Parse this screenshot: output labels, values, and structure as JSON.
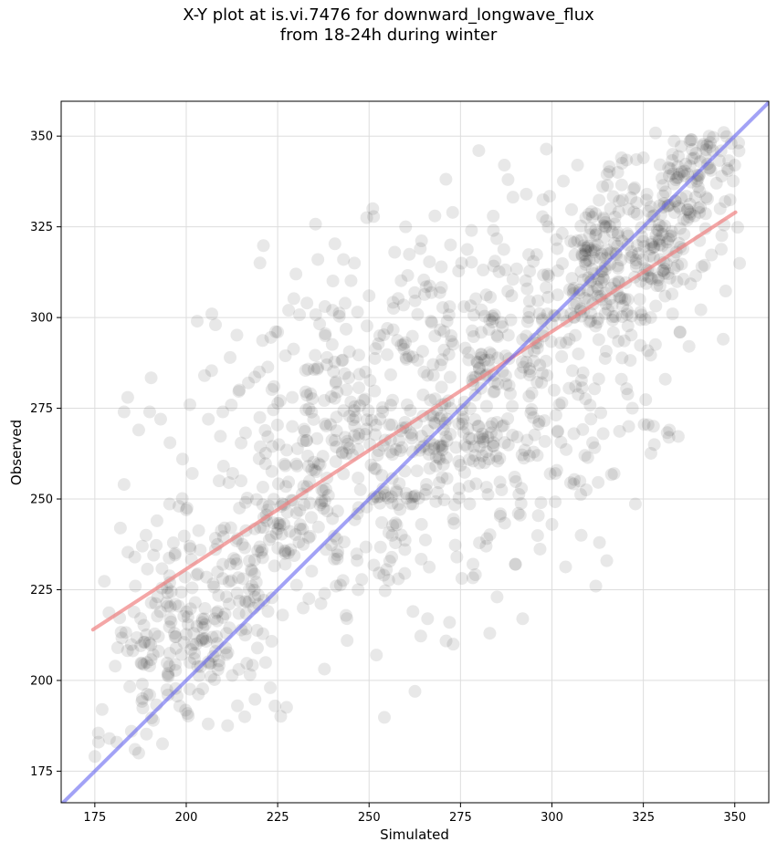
{
  "chart_data": {
    "type": "scatter",
    "title_line1": "X-Y plot at is.vi.7476 for downward_longwave_flux",
    "title_line2": "from 18-24h during winter",
    "xlabel": "Simulated",
    "ylabel": "Observed",
    "xlim": [
      165.8,
      359.3
    ],
    "ylim": [
      166.3,
      359.6
    ],
    "xticks": [
      175,
      200,
      225,
      250,
      275,
      300,
      325,
      350
    ],
    "yticks": [
      175,
      200,
      225,
      250,
      275,
      300,
      325,
      350
    ],
    "grid": true,
    "point_color": "#000000",
    "point_opacity": 0.09,
    "fit_line": {
      "color": "#f08080",
      "x": [
        174.5,
        350.2
      ],
      "y": [
        214.0,
        329.0
      ]
    },
    "identity_line": {
      "color": "#6464f0",
      "x": [
        165.8,
        359.3
      ],
      "y": [
        165.8,
        359.3
      ]
    },
    "clusters": [
      {
        "cx": 320,
        "cy": 318,
        "sx": 14,
        "sy": 14,
        "n": 320,
        "corr": 0.5
      },
      {
        "cx": 285,
        "cy": 280,
        "sx": 22,
        "sy": 24,
        "n": 360,
        "corr": 0.2
      },
      {
        "cx": 248,
        "cy": 262,
        "sx": 22,
        "sy": 26,
        "n": 330,
        "corr": 0.3
      },
      {
        "cx": 225,
        "cy": 250,
        "sx": 12,
        "sy": 24,
        "n": 120,
        "corr": 0.3
      },
      {
        "cx": 207,
        "cy": 216,
        "sx": 8,
        "sy": 14,
        "n": 120,
        "corr": 0.5
      },
      {
        "cx": 188,
        "cy": 205,
        "sx": 7,
        "sy": 16,
        "n": 60,
        "corr": 0.6
      },
      {
        "cx": 340,
        "cy": 342,
        "sx": 7,
        "sy": 7,
        "n": 60,
        "corr": 0.6
      }
    ],
    "points": [
      [
        176,
        183
      ],
      [
        177,
        192
      ],
      [
        179,
        184
      ],
      [
        181,
        183
      ],
      [
        182,
        242
      ],
      [
        183,
        254
      ],
      [
        183,
        274
      ],
      [
        184,
        278
      ],
      [
        185,
        186
      ],
      [
        186,
        181
      ],
      [
        187,
        180
      ],
      [
        187,
        269
      ],
      [
        188,
        195
      ],
      [
        188,
        199
      ],
      [
        188,
        237
      ],
      [
        189,
        240
      ],
      [
        190,
        196
      ],
      [
        190,
        204
      ],
      [
        190,
        274
      ],
      [
        191,
        189
      ],
      [
        192,
        244
      ],
      [
        193,
        272
      ],
      [
        195,
        196
      ],
      [
        197,
        221
      ],
      [
        198,
        248
      ],
      [
        199,
        261
      ],
      [
        200,
        247
      ],
      [
        201,
        276
      ],
      [
        202,
        213
      ],
      [
        203,
        299
      ],
      [
        204,
        211
      ],
      [
        205,
        284
      ],
      [
        206,
        188
      ],
      [
        207,
        301
      ],
      [
        208,
        208
      ],
      [
        208,
        298
      ],
      [
        209,
        255
      ],
      [
        210,
        274
      ],
      [
        211,
        213
      ],
      [
        212,
        289
      ],
      [
        214,
        193
      ],
      [
        215,
        255
      ],
      [
        216,
        190
      ],
      [
        217,
        282
      ],
      [
        218,
        226
      ],
      [
        220,
        285
      ],
      [
        222,
        244
      ],
      [
        223,
        198
      ],
      [
        224,
        281
      ],
      [
        225,
        296
      ],
      [
        227,
        235
      ],
      [
        228,
        302
      ],
      [
        229,
        278
      ],
      [
        230,
        312
      ],
      [
        232,
        266
      ],
      [
        233,
        304
      ],
      [
        234,
        279
      ],
      [
        236,
        316
      ],
      [
        237,
        249
      ],
      [
        238,
        295
      ],
      [
        240,
        302
      ],
      [
        241,
        226
      ],
      [
        243,
        316
      ],
      [
        244,
        211
      ],
      [
        246,
        315
      ],
      [
        247,
        225
      ],
      [
        249,
        285
      ],
      [
        250,
        306
      ],
      [
        251,
        330
      ],
      [
        252,
        207
      ],
      [
        253,
        272
      ],
      [
        254,
        229
      ],
      [
        255,
        297
      ],
      [
        257,
        318
      ],
      [
        258,
        228
      ],
      [
        260,
        325
      ],
      [
        262,
        219
      ],
      [
        264,
        319
      ],
      [
        265,
        285
      ],
      [
        266,
        217
      ],
      [
        268,
        328
      ],
      [
        270,
        256
      ],
      [
        272,
        216
      ],
      [
        273,
        210
      ],
      [
        274,
        234
      ],
      [
        276,
        303
      ],
      [
        278,
        324
      ],
      [
        279,
        262
      ],
      [
        280,
        346
      ],
      [
        282,
        237
      ],
      [
        283,
        213
      ],
      [
        284,
        324
      ],
      [
        285,
        223
      ],
      [
        287,
        342
      ],
      [
        288,
        338
      ],
      [
        289,
        306
      ],
      [
        290,
        232
      ],
      [
        292,
        217
      ],
      [
        293,
        334
      ],
      [
        295,
        288
      ],
      [
        296,
        262
      ],
      [
        297,
        249
      ],
      [
        299,
        325
      ],
      [
        300,
        243
      ],
      [
        302,
        276
      ],
      [
        304,
        299
      ],
      [
        306,
        268
      ],
      [
        307,
        342
      ],
      [
        308,
        240
      ],
      [
        309,
        262
      ],
      [
        310,
        311
      ],
      [
        312,
        226
      ],
      [
        313,
        238
      ],
      [
        314,
        268
      ],
      [
        315,
        233
      ],
      [
        316,
        330
      ],
      [
        317,
        257
      ],
      [
        318,
        340
      ],
      [
        319,
        283
      ],
      [
        320,
        305
      ],
      [
        321,
        270
      ],
      [
        322,
        275
      ],
      [
        323,
        315
      ],
      [
        324,
        305
      ],
      [
        325,
        344
      ],
      [
        326,
        334
      ],
      [
        327,
        300
      ],
      [
        328,
        265
      ],
      [
        329,
        311
      ],
      [
        331,
        283
      ],
      [
        332,
        267
      ],
      [
        333,
        345
      ],
      [
        334,
        318
      ],
      [
        335,
        296
      ],
      [
        336,
        327
      ],
      [
        338,
        349
      ],
      [
        339,
        328
      ],
      [
        340,
        336
      ],
      [
        341,
        314
      ],
      [
        342,
        344
      ],
      [
        343,
        350
      ],
      [
        344,
        346
      ],
      [
        345,
        337
      ],
      [
        346,
        330
      ],
      [
        347,
        351
      ],
      [
        348,
        341
      ],
      [
        349,
        348
      ],
      [
        350,
        342
      ]
    ]
  }
}
